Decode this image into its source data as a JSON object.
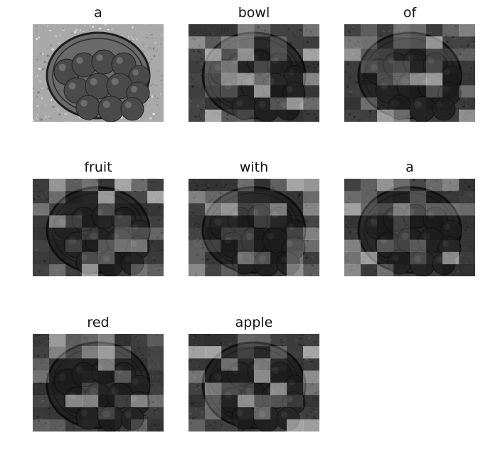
{
  "panels": [
    {
      "word": "a",
      "image": "grayscale photo of a bowl of round fruit (original)"
    },
    {
      "word": "bowl",
      "image": "attention-masked grayscale photo of a bowl of fruit"
    },
    {
      "word": "of",
      "image": "attention-masked grayscale photo of a bowl of fruit"
    },
    {
      "word": "fruit",
      "image": "attention-masked grayscale photo of a bowl of fruit"
    },
    {
      "word": "with",
      "image": "attention-masked grayscale photo of a bowl of fruit"
    },
    {
      "word": "a",
      "image": "attention-masked grayscale photo of a bowl of fruit"
    },
    {
      "word": "red",
      "image": "attention-masked grayscale photo of a bowl of fruit"
    },
    {
      "word": "apple",
      "image": "attention-masked grayscale photo of a bowl of fruit"
    }
  ]
}
